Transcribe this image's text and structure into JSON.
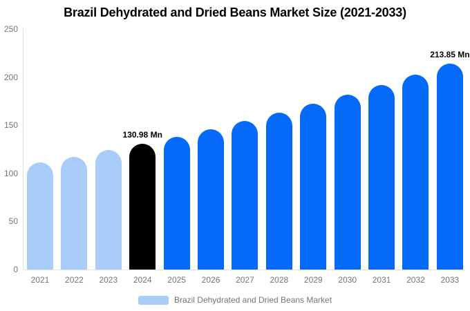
{
  "title": "Brazil Dehydrated and Dried Beans Market Size (2021-2033)",
  "chart_data": {
    "type": "bar",
    "title": "Brazil Dehydrated and Dried Beans Market Size (2021-2033)",
    "categories": [
      "2021",
      "2022",
      "2023",
      "2024",
      "2025",
      "2026",
      "2027",
      "2028",
      "2029",
      "2030",
      "2031",
      "2032",
      "2033"
    ],
    "values": [
      111.2,
      117.4,
      124.0,
      130.98,
      138.3,
      146.1,
      154.3,
      163.0,
      172.1,
      181.7,
      191.9,
      202.6,
      213.85
    ],
    "value_unit": "Mn",
    "bar_colors": [
      "#a8cdf8",
      "#a8cdf8",
      "#a8cdf8",
      "#000000",
      "#0569fa",
      "#0569fa",
      "#0569fa",
      "#0569fa",
      "#0569fa",
      "#0569fa",
      "#0569fa",
      "#0569fa",
      "#0569fa"
    ],
    "annotations": [
      {
        "category": "2024",
        "text": "130.98 Mn"
      },
      {
        "category": "2033",
        "text": "213.85 Mn"
      }
    ],
    "xlabel": "",
    "ylabel": "",
    "ylim": [
      0,
      250
    ],
    "yticks": [
      0,
      50,
      100,
      150,
      200,
      250
    ],
    "grid": false,
    "legend": {
      "position": "bottom",
      "label": "Brazil Dehydrated and Dried Beans Market",
      "swatch_color": "#a8cdf8"
    }
  },
  "colors": {
    "background": "#ffffff",
    "historical_bar": "#a8cdf8",
    "highlight_bar": "#000000",
    "forecast_bar": "#0569fa",
    "axis_line": "#dddddd",
    "baseline": "#e0e0e0",
    "tick_text": "#757575",
    "title_text": "#000000",
    "value_label_text": "#000000"
  }
}
